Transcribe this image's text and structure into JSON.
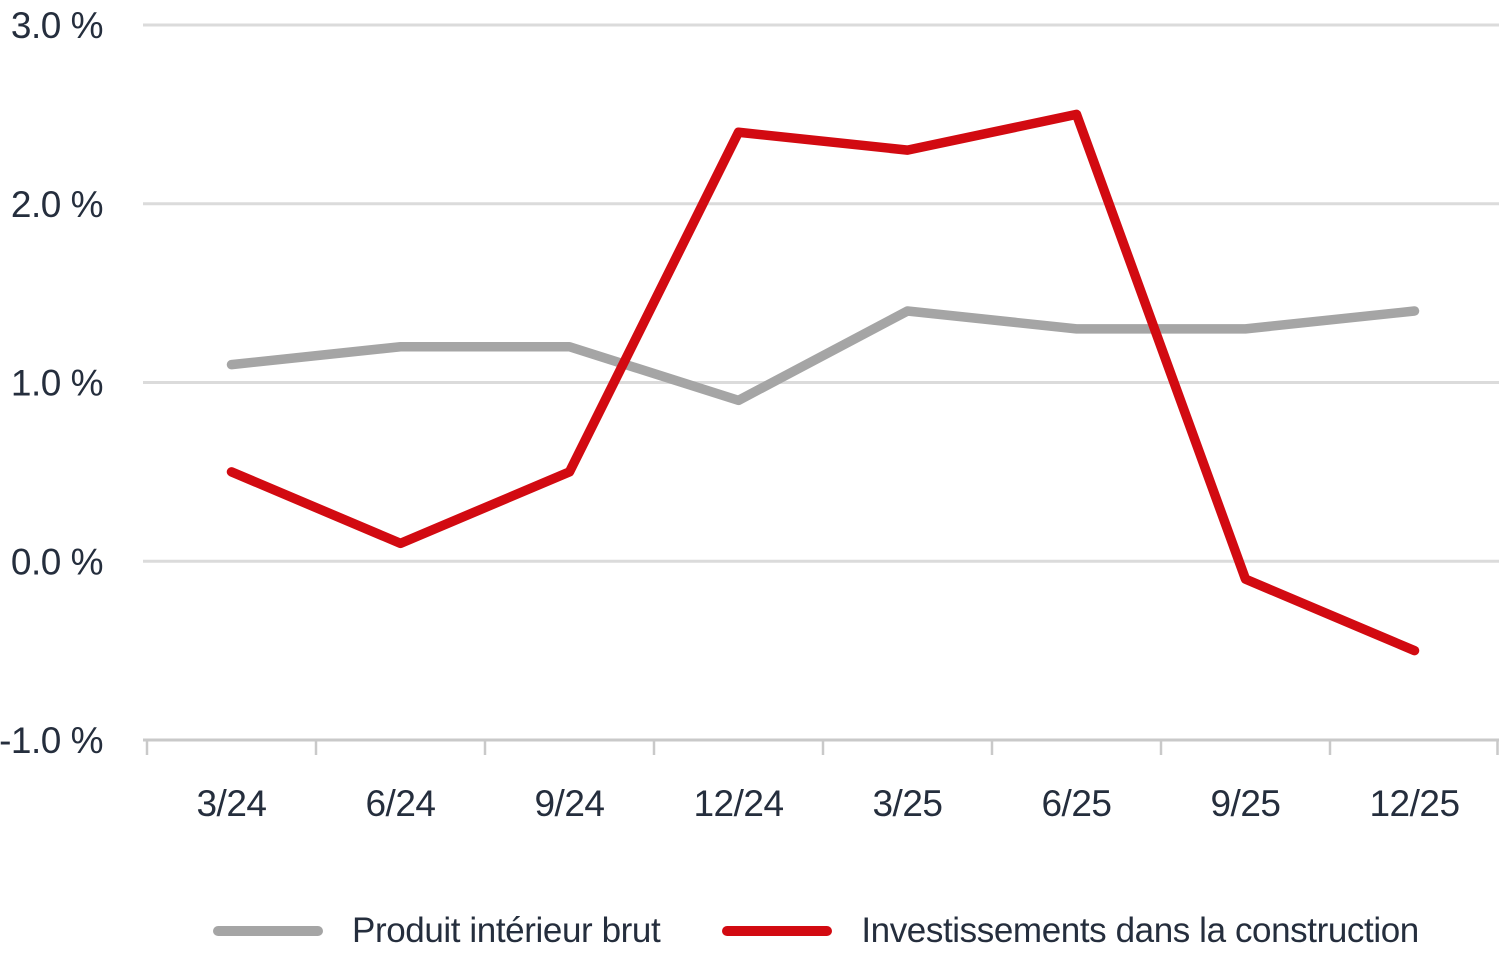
{
  "chart_data": {
    "type": "line",
    "title": "",
    "xlabel": "",
    "ylabel": "",
    "categories": [
      "3/24",
      "6/24",
      "9/24",
      "12/24",
      "3/25",
      "6/25",
      "9/25",
      "12/25"
    ],
    "series": [
      {
        "name": "Produit intérieur brut",
        "values": [
          1.1,
          1.2,
          1.2,
          0.9,
          1.4,
          1.3,
          1.3,
          1.4
        ],
        "color": "#a5a5a5"
      },
      {
        "name": "Investissements dans la construction",
        "values": [
          0.5,
          0.1,
          0.5,
          2.4,
          2.3,
          2.5,
          -0.1,
          -0.5
        ],
        "color": "#d20a11"
      }
    ],
    "ylim": [
      -1.0,
      3.0
    ],
    "yticks": [
      3.0,
      2.0,
      1.0,
      0.0,
      -1.0
    ],
    "ytick_labels": [
      "3.0 %",
      "2.0 %",
      "1.0 %",
      "0.0 %",
      "-1.0 %"
    ],
    "grid": true,
    "legend_position": "bottom"
  },
  "colors": {
    "grid": "#dbdbdb",
    "axis": "#c9c9c9",
    "text": "#252e3d",
    "background": "#ffffff"
  }
}
